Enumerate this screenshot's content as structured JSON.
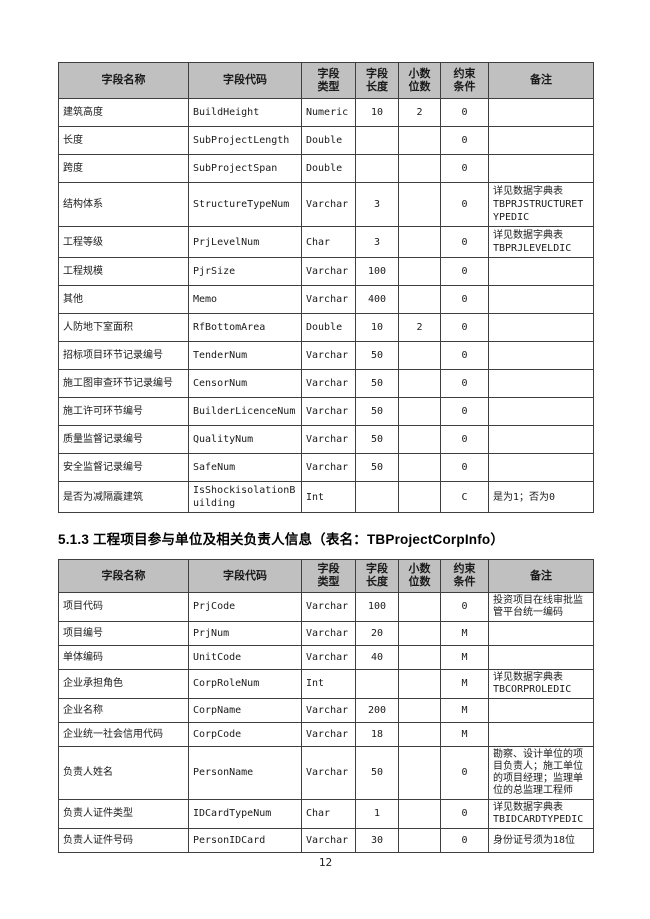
{
  "table1": {
    "columns": [
      "字段名称",
      "字段代码",
      "字段\n类型",
      "字段\n长度",
      "小数\n位数",
      "约束\n条件",
      "备注"
    ],
    "rows": [
      [
        "建筑高度",
        "BuildHeight",
        "Numeric",
        "10",
        "2",
        "0",
        ""
      ],
      [
        "长度",
        "SubProjectLength",
        "Double",
        "",
        "",
        "0",
        ""
      ],
      [
        "跨度",
        "SubProjectSpan",
        "Double",
        "",
        "",
        "0",
        ""
      ],
      [
        "结构体系",
        "StructureTypeNum",
        "Varchar",
        "3",
        "",
        "0",
        "详见数据字典表\nTBPRJSTRUCTURETYPEDIC"
      ],
      [
        "工程等级",
        "PrjLevelNum",
        "Char",
        "3",
        "",
        "0",
        "详见数据字典表\nTBPRJLEVELDIC"
      ],
      [
        "工程规模",
        "PjrSize",
        "Varchar",
        "100",
        "",
        "0",
        ""
      ],
      [
        "其他",
        "Memo",
        "Varchar",
        "400",
        "",
        "0",
        ""
      ],
      [
        "人防地下室面积",
        "RfBottomArea",
        "Double",
        "10",
        "2",
        "0",
        ""
      ],
      [
        "招标项目环节记录编号",
        "TenderNum",
        "Varchar",
        "50",
        "",
        "0",
        ""
      ],
      [
        "施工图审查环节记录编号",
        "CensorNum",
        "Varchar",
        "50",
        "",
        "0",
        ""
      ],
      [
        "施工许可环节编号",
        "BuilderLicenceNum",
        "Varchar",
        "50",
        "",
        "0",
        ""
      ],
      [
        "质量监督记录编号",
        "QualityNum",
        "Varchar",
        "50",
        "",
        "0",
        ""
      ],
      [
        "安全监督记录编号",
        "SafeNum",
        "Varchar",
        "50",
        "",
        "0",
        ""
      ],
      [
        "是否为减隔震建筑",
        "IsShockisolationBuilding",
        "Int",
        "",
        "",
        "C",
        "是为1；否为0"
      ]
    ]
  },
  "heading2": "5.1.3 工程项目参与单位及相关负责人信息（表名：TBProjectCorpInfo）",
  "table2": {
    "columns": [
      "字段名称",
      "字段代码",
      "字段\n类型",
      "字段\n长度",
      "小数\n位数",
      "约束\n条件",
      "备注"
    ],
    "rows": [
      [
        "项目代码",
        "PrjCode",
        "Varchar",
        "100",
        "",
        "0",
        "投资项目在线审批监管平台统一编码"
      ],
      [
        "项目编号",
        "PrjNum",
        "Varchar",
        "20",
        "",
        "M",
        ""
      ],
      [
        "单体编码",
        "UnitCode",
        "Varchar",
        "40",
        "",
        "M",
        ""
      ],
      [
        "企业承担角色",
        "CorpRoleNum",
        "Int",
        "",
        "",
        "M",
        "详见数据字典表\nTBCORPROLEDIC"
      ],
      [
        "企业名称",
        "CorpName",
        "Varchar",
        "200",
        "",
        "M",
        ""
      ],
      [
        "企业统一社会信用代码",
        "CorpCode",
        "Varchar",
        "18",
        "",
        "M",
        ""
      ],
      [
        "负责人姓名",
        "PersonName",
        "Varchar",
        "50",
        "",
        "0",
        "勘察、设计单位的项目负责人；施工单位的项目经理；监理单位的总监理工程师"
      ],
      [
        "负责人证件类型",
        "IDCardTypeNum",
        "Char",
        "1",
        "",
        "0",
        "详见数据字典表\nTBIDCARDTYPEDIC"
      ],
      [
        "负责人证件号码",
        "PersonIDCard",
        "Varchar",
        "30",
        "",
        "0",
        "身份证号须为18位"
      ]
    ]
  },
  "footer": {
    "page_number": "12"
  }
}
